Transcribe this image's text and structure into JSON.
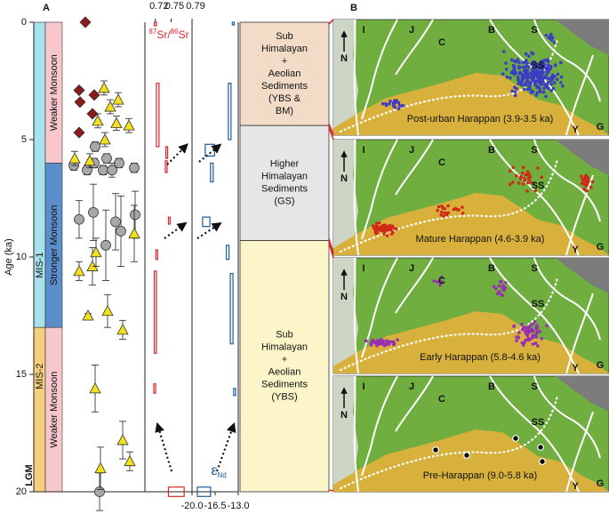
{
  "panel_a": {
    "label": "A",
    "y_axis": {
      "label": "Age (ka)",
      "ylim": [
        0,
        20
      ],
      "yticks": [
        0,
        5,
        10,
        15,
        20
      ]
    },
    "mis": [
      {
        "label": "MIS-1",
        "from": 0,
        "to": 13,
        "color": "#a8e2ea"
      },
      {
        "label": "MIS-2",
        "from": 13,
        "to": 20,
        "color": "#f5cf7c"
      }
    ],
    "monsoon": [
      {
        "label": "Weaker Monsoon",
        "from": 0,
        "to": 6,
        "color": "#f8c7cd"
      },
      {
        "label": "Stronger Monsoon",
        "from": 6,
        "to": 13,
        "color": "#5b8ecb"
      },
      {
        "label": "Weaker Monsoon",
        "from": 13,
        "to": 20,
        "color": "#f8c7cd"
      }
    ],
    "lgm_label": "LGM",
    "proxies": [
      {
        "marker": "diamond",
        "color": "#8e1b1b",
        "points": [
          {
            "age": 0
          },
          {
            "age": 2.9
          },
          {
            "age": 3.1
          },
          {
            "age": 3.4
          },
          {
            "age": 3.9
          },
          {
            "age": 4.7
          }
        ]
      },
      {
        "marker": "circle",
        "color": "#a8a8a8",
        "points": [
          {
            "age": 5.3,
            "err": 0.2
          },
          {
            "age": 5.8,
            "err": 0.2
          },
          {
            "age": 6.0,
            "err": 0.2
          },
          {
            "age": 6.0,
            "err": 0.2
          },
          {
            "age": 6.1,
            "err": 0.2
          },
          {
            "age": 6.2,
            "err": 0.2
          },
          {
            "age": 6.3,
            "err": 0.2
          },
          {
            "age": 6.3,
            "err": 0.2
          },
          {
            "age": 6.3,
            "err": 0.3
          },
          {
            "age": 8.4,
            "err": 0.8
          },
          {
            "age": 8.1,
            "err": 1.2
          },
          {
            "age": 8.9,
            "err": 1.5
          },
          {
            "age": 8.2,
            "err": 1
          },
          {
            "age": 9.5,
            "err": 1.5
          },
          {
            "age": 8.5,
            "err": 1.2
          },
          {
            "age": 20,
            "err": 0.8
          }
        ]
      },
      {
        "marker": "triangle",
        "color": "#f2e01e",
        "points": [
          {
            "age": 2.8,
            "err": 0.3
          },
          {
            "age": 3.3,
            "err": 0.3
          },
          {
            "age": 3.6,
            "err": 0.3
          },
          {
            "age": 4.2,
            "err": 0.3
          },
          {
            "age": 4.3,
            "err": 0.3
          },
          {
            "age": 4.4,
            "err": 0.3
          },
          {
            "age": 5.0,
            "err": 0.3
          },
          {
            "age": 5.8,
            "err": 0.3
          },
          {
            "age": 5.9,
            "err": 0.3
          },
          {
            "age": 9.0,
            "err": 1.2
          },
          {
            "age": 10.6,
            "err": 0.4
          },
          {
            "age": 10.4,
            "err": 0.8
          },
          {
            "age": 9.8,
            "err": 0.6
          },
          {
            "age": 12.5,
            "err": 0.1
          },
          {
            "age": 12.3,
            "err": 0.7
          },
          {
            "age": 13.1,
            "err": 0.4
          },
          {
            "age": 15.6,
            "err": 1.0
          },
          {
            "age": 17.8,
            "err": 0.8
          },
          {
            "age": 18.7,
            "err": 0.4
          },
          {
            "age": 19.0,
            "err": 0.9
          }
        ]
      }
    ],
    "sr": {
      "label": [
        "87",
        "Sr/",
        "86",
        "Sr"
      ],
      "color": "#d9262c",
      "xlim": [
        0.7,
        0.79
      ],
      "xticks": [
        0.72,
        0.75,
        0.79
      ],
      "boxes": [
        {
          "ages": [
            0,
            0.15
          ],
          "values": [
            0.718,
            0.722
          ]
        },
        {
          "ages": [
            2.6,
            5.3
          ],
          "values": [
            0.722,
            0.727
          ]
        },
        {
          "ages": [
            5.3,
            5.8
          ],
          "values": [
            0.74,
            0.743
          ]
        },
        {
          "ages": [
            5.9,
            6.4
          ],
          "values": [
            0.739,
            0.741
          ]
        },
        {
          "ages": [
            8.3,
            8.6
          ],
          "values": [
            0.745,
            0.746
          ]
        },
        {
          "ages": [
            9.7,
            10.1
          ],
          "values": [
            0.721,
            0.723
          ]
        },
        {
          "ages": [
            10.6,
            14.1
          ],
          "values": [
            0.718,
            0.722
          ]
        },
        {
          "ages": [
            15.4,
            15.8
          ],
          "values": [
            0.717,
            0.719
          ]
        },
        {
          "ages": [
            19.8,
            20.2
          ],
          "values": [
            0.745,
            0.775
          ]
        }
      ]
    },
    "nd": {
      "label": [
        "ε",
        "Nd"
      ],
      "color": "#1f5a9c",
      "xlim": [
        -20,
        -13
      ],
      "xticks": [
        {
          "value": -20,
          "label": "-20.0"
        },
        -16.5,
        {
          "value": -13,
          "label": "-13.0"
        }
      ],
      "boxes": [
        {
          "ages": [
            0,
            0.1
          ],
          "values": [
            -13.9,
            -13.6
          ]
        },
        {
          "ages": [
            2.6,
            5.0
          ],
          "values": [
            -14.5,
            -14.1
          ]
        },
        {
          "ages": [
            5.2,
            5.7
          ],
          "values": [
            -18,
            -16.6
          ]
        },
        {
          "ages": [
            6.0,
            6.8
          ],
          "values": [
            -17.2,
            -16.8
          ]
        },
        {
          "ages": [
            8.3,
            8.7
          ],
          "values": [
            -18.4,
            -17.3
          ]
        },
        {
          "ages": [
            9.5,
            10.1
          ],
          "values": [
            -14.8,
            -14.4
          ]
        },
        {
          "ages": [
            10.7,
            13.7
          ],
          "values": [
            -14.2,
            -13.8
          ]
        },
        {
          "ages": [
            15.6,
            15.9
          ],
          "values": [
            -13.7,
            -13.4
          ]
        },
        {
          "ages": [
            19.8,
            20.2
          ],
          "values": [
            -19.2,
            -17.2
          ]
        }
      ]
    },
    "sediments": [
      {
        "from": 0,
        "to": 4.4,
        "color": "#f2dcc8",
        "lines": [
          "Sub",
          "Himalayan",
          "+",
          "Aeolian",
          "Sediments",
          "(YBS &",
          "BM)"
        ]
      },
      {
        "from": 4.4,
        "to": 9.3,
        "color": "#e6e6e6",
        "lines": [
          "Higher",
          "Himalayan",
          "Sediments",
          "(GS)"
        ]
      },
      {
        "from": 9.3,
        "to": 20,
        "color": "#fbf5c9",
        "lines": [
          "Sub",
          "Himalayan",
          "+",
          "Aeolian",
          "Sediments",
          "(YBS)"
        ]
      }
    ]
  },
  "panel_b": {
    "label": "B",
    "map_labels": {
      "north": "N",
      "i": "I",
      "j": "J",
      "c": "C",
      "b": "B",
      "s": "S",
      "ss": "SS",
      "y": "Y",
      "g": "G"
    },
    "maps": [
      {
        "caption": "Post-urban Harappan (3.9-3.5 ka)",
        "dot_color": "#3c3cc4"
      },
      {
        "caption": "Mature Harappan (4.6-3.9 ka)",
        "dot_color": "#cf2c18"
      },
      {
        "caption": "Early Harappan (5.8-4.6 ka)",
        "dot_color": "#9a2fb2"
      },
      {
        "caption": "Pre-Harappan (9.0-5.8 ka)",
        "dot_color": "#000000"
      }
    ]
  }
}
